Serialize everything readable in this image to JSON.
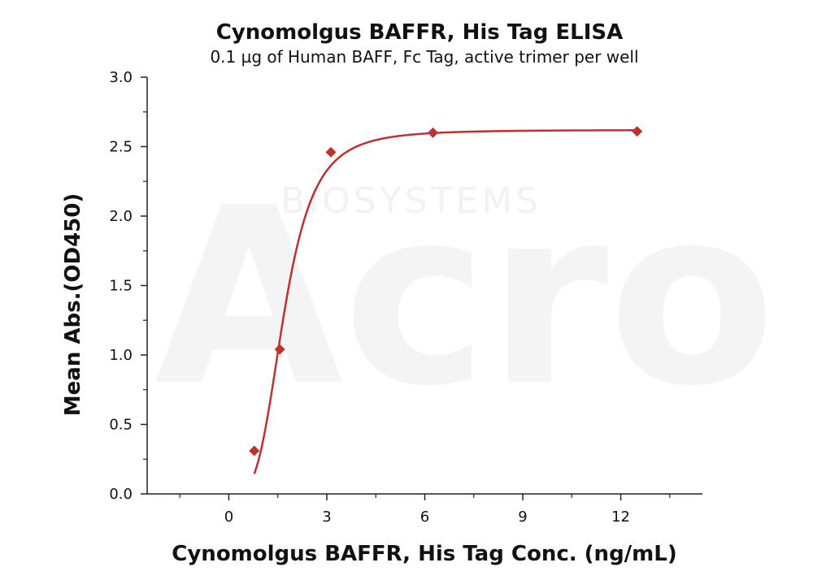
{
  "watermark": {
    "logo": "Acro",
    "tagline": "BIOSYSTEMS"
  },
  "colors": {
    "series": "#c0302e",
    "axis": "#222222",
    "watermark": "#f2f2f2"
  },
  "chart_data": {
    "type": "scatter",
    "title": "Cynomolgus BAFFR, His Tag ELISA",
    "subtitle": "0.1 µg of Human BAFF, Fc Tag, active trimer per well",
    "xlabel": "Cynomolgus BAFFR, His Tag Conc. (ng/mL)",
    "ylabel": "Mean Abs.(OD450)",
    "xlim": [
      -2.5,
      14.5
    ],
    "ylim": [
      0,
      3.0
    ],
    "xticks": [
      0,
      3,
      6,
      9,
      12
    ],
    "xtick_labels": [
      "0",
      "3",
      "6",
      "9",
      "12"
    ],
    "yticks": [
      0,
      0.5,
      1.0,
      1.5,
      2.0,
      2.5,
      3.0
    ],
    "ytick_labels": [
      "0.0",
      "0.5",
      "1.0",
      "1.5",
      "2.0",
      "2.5",
      "3.0"
    ],
    "grid": false,
    "legend": "none",
    "marker": "diamond",
    "series": [
      {
        "x": [
          0.78,
          1.56,
          3.125,
          6.25,
          12.5
        ],
        "y": [
          0.31,
          1.04,
          2.46,
          2.6,
          2.61
        ],
        "fit": "four-parameter logistic"
      }
    ]
  }
}
